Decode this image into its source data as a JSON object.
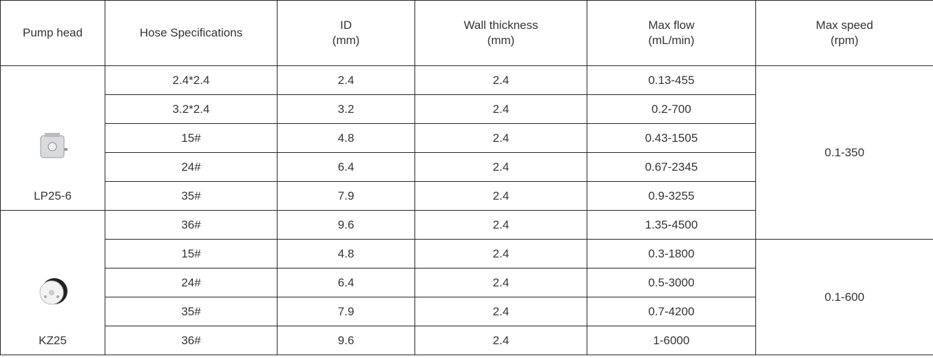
{
  "header": [
    [
      "Pump head"
    ],
    [
      "Hose Specifications"
    ],
    [
      "ID",
      "(mm)"
    ],
    [
      "Wall thickness",
      "(mm)"
    ],
    [
      "Max flow",
      "(mL/min)"
    ],
    [
      "Max speed",
      "(rpm)"
    ]
  ],
  "pumps": [
    "LP25-6",
    "KZ25"
  ],
  "rows": [
    [
      "2.4*2.4",
      "2.4",
      "2.4",
      "0.13-455"
    ],
    [
      "3.2*2.4",
      "3.2",
      "2.4",
      "0.2-700"
    ],
    [
      "15#",
      "4.8",
      "2.4",
      "0.43-1505"
    ],
    [
      "24#",
      "6.4",
      "2.4",
      "0.67-2345"
    ],
    [
      "35#",
      "7.9",
      "2.4",
      "0.9-3255"
    ],
    [
      "36#",
      "9.6",
      "2.4",
      "1.35-4500"
    ],
    [
      "15#",
      "4.8",
      "2.4",
      "0.3-1800"
    ],
    [
      "24#",
      "6.4",
      "2.4",
      "0.5-3000"
    ],
    [
      "35#",
      "7.9",
      "2.4",
      "0.7-4200"
    ],
    [
      "36#",
      "9.6",
      "2.4",
      "1-6000"
    ]
  ],
  "max_speed": [
    "0.1-350",
    "0.1-600"
  ]
}
